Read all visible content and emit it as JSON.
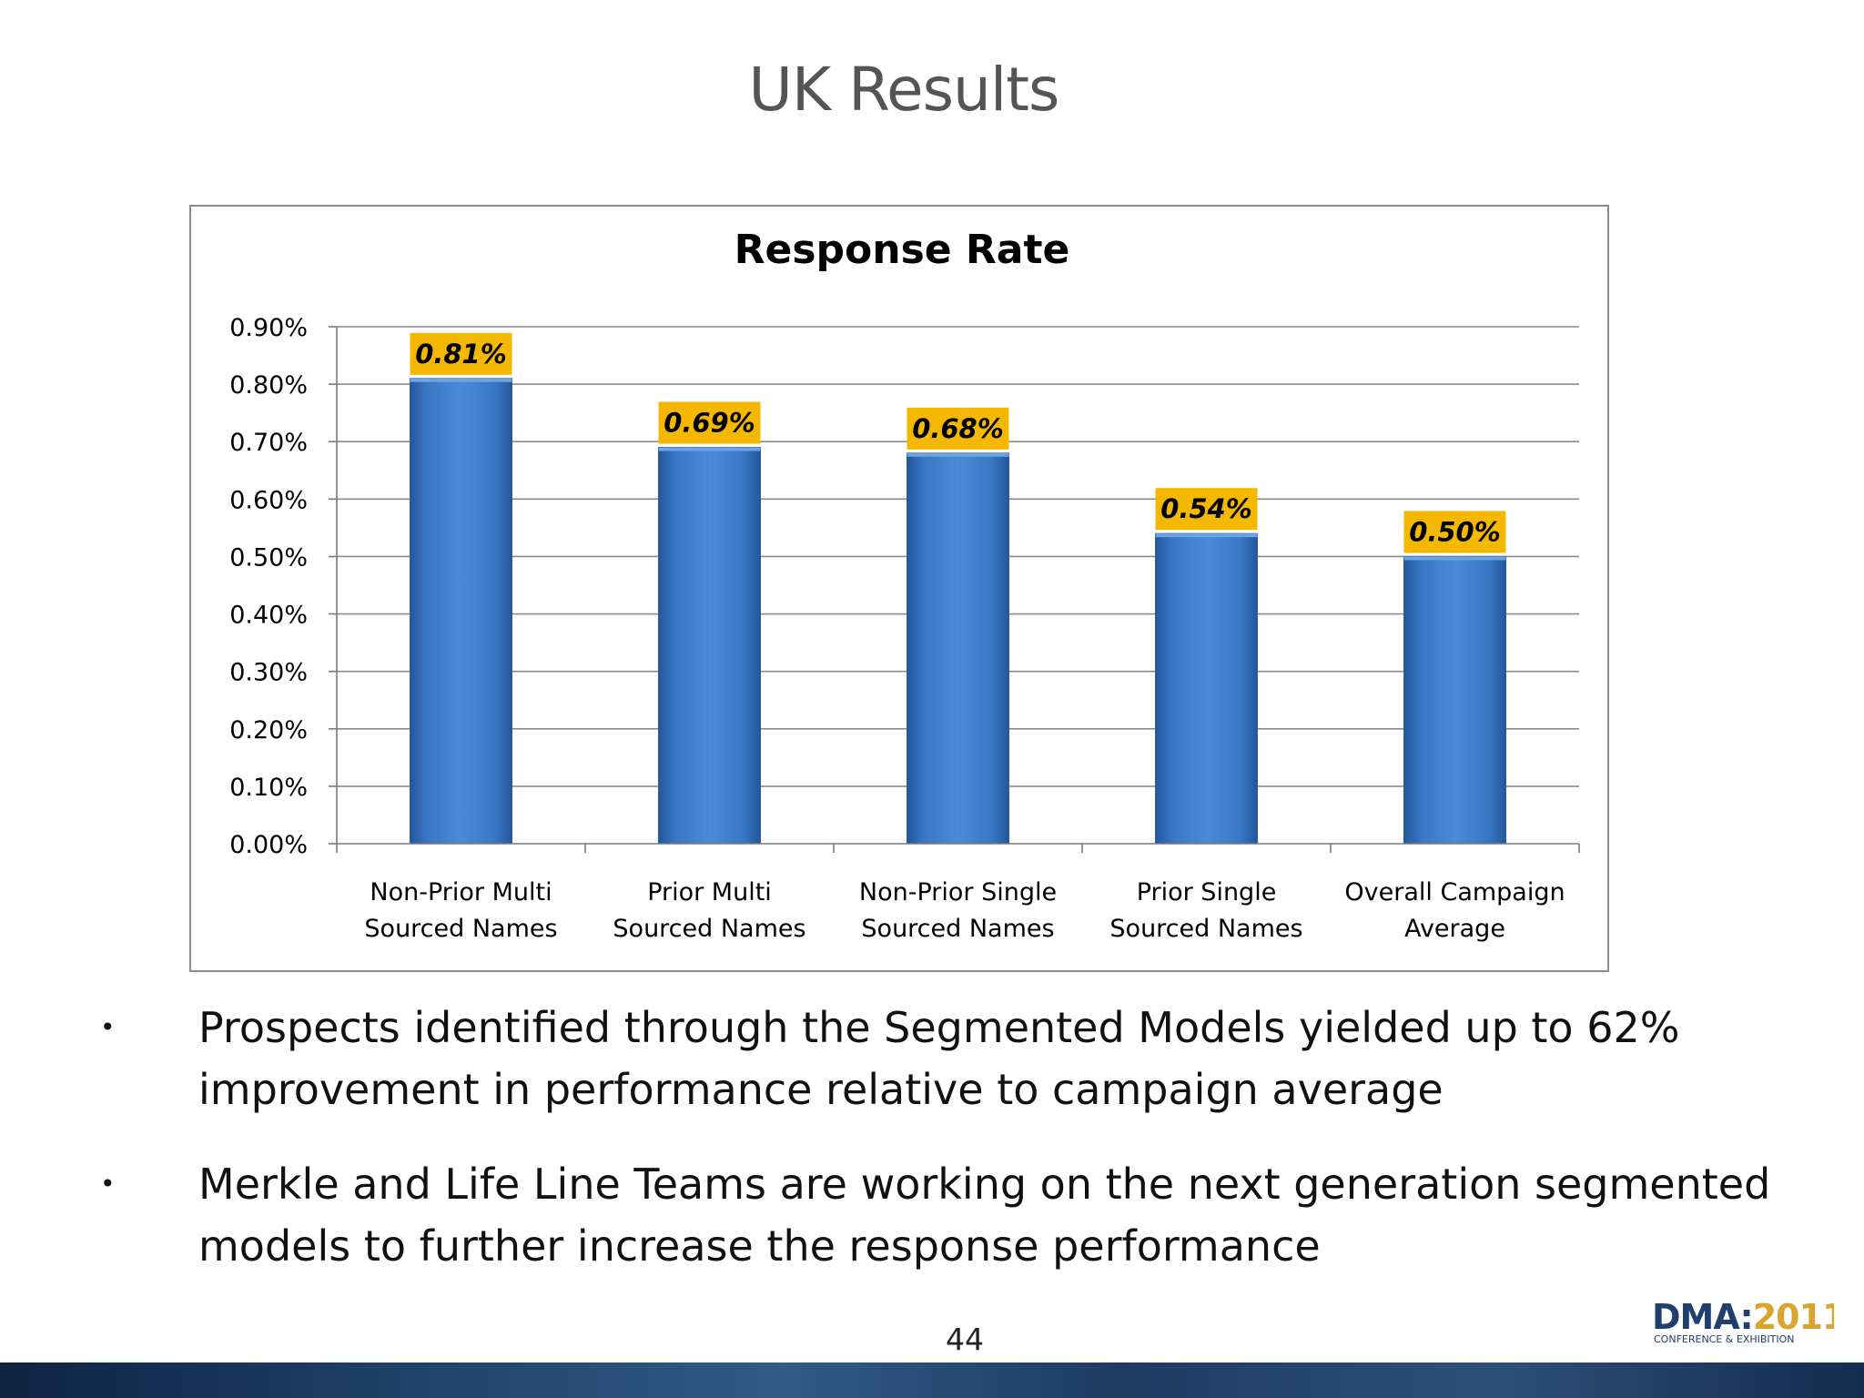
{
  "slide": {
    "title": "UK Results",
    "page_number": "44",
    "bullets": [
      "Prospects identified through the Segmented Models yielded up to 62% improvement in performance relative to campaign average",
      "Merkle and Life Line Teams are working on the next generation segmented models to further increase the response performance"
    ],
    "bullet_symbol": "•",
    "logo": {
      "text_left": "DMA",
      "separator": ":",
      "text_right": "2011",
      "subtitle": "CONFERENCE & EXHIBITION",
      "colors": {
        "left": "#1f3f6e",
        "right": "#d9a52a"
      }
    }
  },
  "chart_data": {
    "type": "bar",
    "title": "Response Rate",
    "categories": [
      [
        "Non-Prior Multi",
        "Sourced Names"
      ],
      [
        "Prior Multi",
        "Sourced Names"
      ],
      [
        "Non-Prior Single",
        "Sourced Names"
      ],
      [
        "Prior Single",
        "Sourced Names"
      ],
      [
        "Overall Campaign",
        "Average"
      ]
    ],
    "values": [
      0.81,
      0.69,
      0.68,
      0.54,
      0.5
    ],
    "data_labels": [
      "0.81%",
      "0.69%",
      "0.68%",
      "0.54%",
      "0.50%"
    ],
    "ylim": [
      0,
      0.9
    ],
    "yticks": [
      "0.00%",
      "0.10%",
      "0.20%",
      "0.30%",
      "0.40%",
      "0.50%",
      "0.60%",
      "0.70%",
      "0.80%",
      "0.90%"
    ],
    "xlabel": "",
    "ylabel": "",
    "grid": true,
    "colors": {
      "bar": "#3b78c4",
      "label_bg": "#f5b800",
      "grid": "#8a8a8a"
    }
  }
}
